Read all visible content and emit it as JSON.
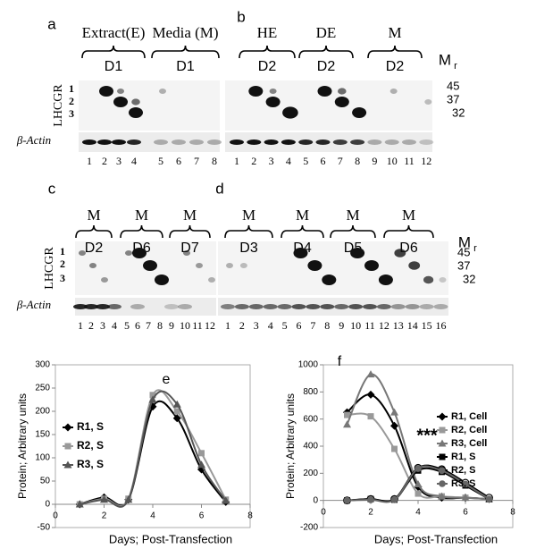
{
  "blots": [
    {
      "panel": "a",
      "headers": [
        "Extract(E)",
        "Media (M)"
      ],
      "days": [
        "D1",
        "D1"
      ],
      "lanes": [
        1,
        2,
        3,
        4,
        5,
        6,
        7,
        8
      ]
    },
    {
      "panel": "b",
      "headers": [
        "HE",
        "DE",
        "M"
      ],
      "days": [
        "D2",
        "D2",
        "D2"
      ],
      "lanes": [
        1,
        2,
        3,
        4,
        5,
        6,
        7,
        8,
        9,
        10,
        11,
        12
      ]
    },
    {
      "panel": "c",
      "headers": [
        "M",
        "M",
        "M"
      ],
      "days": [
        "D2",
        "D6",
        "D7"
      ],
      "lanes": [
        1,
        2,
        3,
        4,
        5,
        6,
        7,
        8,
        9,
        10,
        11,
        12
      ]
    },
    {
      "panel": "d",
      "headers": [
        "M",
        "M",
        "M",
        "M"
      ],
      "days": [
        "D3",
        "D4",
        "D5",
        "D6"
      ],
      "lanes": [
        1,
        2,
        3,
        4,
        5,
        6,
        7,
        8,
        9,
        10,
        11,
        12,
        13,
        14,
        15,
        16
      ]
    }
  ],
  "row_labels": {
    "lhcgr": "LHCGR",
    "actin": "β-Actin",
    "band_numbers": [
      1,
      2,
      3
    ]
  },
  "mr": {
    "main": "M",
    "sub": "r"
  },
  "mw_markers": [
    45,
    37,
    32
  ],
  "chart_data": [
    {
      "type": "line",
      "panel": "e",
      "xlabel": "Days; Post-Transfection",
      "ylabel": "Protein; Arbitrary  units",
      "x": [
        1,
        2,
        3,
        4,
        5,
        6,
        7
      ],
      "xlim": [
        0,
        8
      ],
      "xticks": [
        0,
        2,
        4,
        6,
        8
      ],
      "ylim": [
        -50,
        300
      ],
      "yticks": [
        -50,
        0,
        50,
        100,
        150,
        200,
        250,
        300
      ],
      "series": [
        {
          "name": "R1, S",
          "color": "#000000",
          "marker": "diamond",
          "values": [
            0,
            15,
            10,
            210,
            185,
            75,
            5
          ]
        },
        {
          "name": "R2, S",
          "color": "#999999",
          "marker": "square",
          "values": [
            0,
            12,
            12,
            235,
            200,
            110,
            10
          ]
        },
        {
          "name": "R3, S",
          "color": "#555555",
          "marker": "triangle",
          "values": [
            0,
            10,
            10,
            225,
            215,
            85,
            8
          ]
        }
      ]
    },
    {
      "type": "line",
      "panel": "f",
      "xlabel": "Days; Post-Transfection",
      "ylabel": "Protein; Arbitrary  units",
      "annotation": "***",
      "x": [
        1,
        2,
        3,
        4,
        5,
        6,
        7
      ],
      "xlim": [
        0,
        8
      ],
      "xticks": [
        0,
        2,
        4,
        6,
        8
      ],
      "ylim": [
        -200,
        1000
      ],
      "yticks": [
        -200,
        0,
        200,
        400,
        600,
        800,
        1000
      ],
      "series": [
        {
          "name": "R1, Cell",
          "color": "#000000",
          "marker": "diamond",
          "values": [
            650,
            780,
            550,
            100,
            20,
            20,
            10
          ]
        },
        {
          "name": "R2, Cell",
          "color": "#999999",
          "marker": "square",
          "values": [
            630,
            620,
            380,
            50,
            30,
            20,
            10
          ]
        },
        {
          "name": "R3, Cell",
          "color": "#777777",
          "marker": "triangle",
          "values": [
            560,
            930,
            650,
            120,
            30,
            20,
            10
          ]
        },
        {
          "name": "R1, S",
          "color": "#000000",
          "marker": "square",
          "values": [
            0,
            10,
            5,
            220,
            210,
            110,
            10
          ]
        },
        {
          "name": "R2, S",
          "color": "#000000",
          "marker": "circle-open",
          "values": [
            0,
            10,
            10,
            240,
            230,
            130,
            20
          ]
        },
        {
          "name": "R3, S",
          "color": "#666666",
          "marker": "circle",
          "values": [
            0,
            5,
            5,
            235,
            220,
            120,
            10
          ]
        }
      ]
    }
  ]
}
